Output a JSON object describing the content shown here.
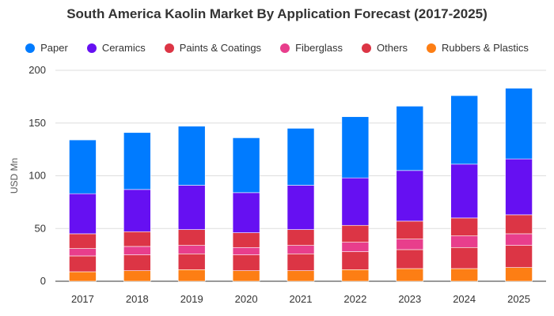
{
  "chart_data": {
    "type": "bar",
    "stacked": true,
    "title": "South America Kaolin Market By Application Forecast (2017-2025)",
    "xlabel": "",
    "ylabel": "USD Mn",
    "ylim": [
      0,
      200
    ],
    "yticks": [
      0,
      50,
      100,
      150,
      200
    ],
    "grid": true,
    "legend_position": "top",
    "categories": [
      "2017",
      "2018",
      "2019",
      "2020",
      "2021",
      "2022",
      "2023",
      "2024",
      "2025"
    ],
    "series": [
      {
        "name": "Rubbers & Plastics",
        "color": "#fd7e14",
        "values": [
          9,
          10,
          11,
          10,
          10,
          11,
          12,
          12,
          13
        ]
      },
      {
        "name": "Others",
        "color": "#dc3545",
        "values": [
          15,
          15,
          15,
          15,
          16,
          17,
          18,
          20,
          21
        ]
      },
      {
        "name": "Fiberglass",
        "color": "#e83e8c",
        "values": [
          7,
          8,
          8,
          7,
          8,
          9,
          10,
          11,
          11
        ]
      },
      {
        "name": "Paints & Coatings",
        "color": "#dc3545",
        "values": [
          14,
          14,
          15,
          14,
          15,
          16,
          17,
          17,
          18
        ]
      },
      {
        "name": "Ceramics",
        "color": "#6610f2",
        "values": [
          38,
          40,
          42,
          38,
          42,
          45,
          48,
          51,
          53
        ]
      },
      {
        "name": "Paper",
        "color": "#007bff",
        "values": [
          51,
          54,
          56,
          52,
          54,
          58,
          61,
          65,
          67
        ]
      }
    ],
    "legend_order": [
      "Paper",
      "Ceramics",
      "Paints & Coatings",
      "Fiberglass",
      "Others",
      "Rubbers & Plastics"
    ]
  }
}
